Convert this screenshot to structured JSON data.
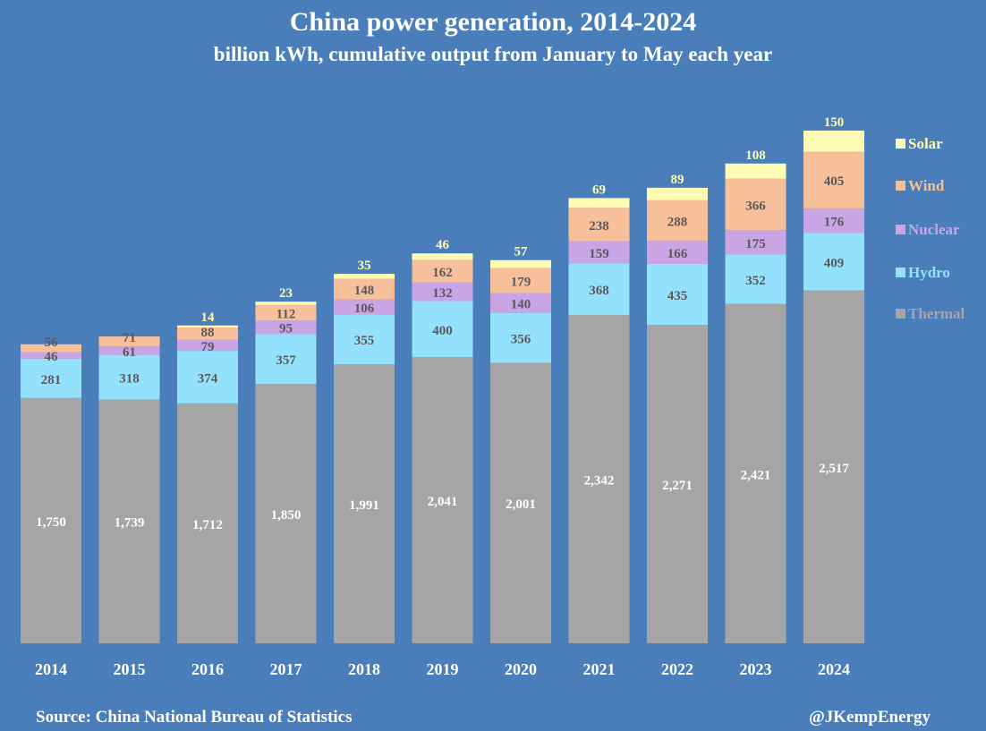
{
  "header": {
    "title": "China power generation, 2014-2024",
    "subtitle": "billion kWh, cumulative output from January to May each year"
  },
  "footer": {
    "source": "Source: China National Bureau of Statistics",
    "handle": "@JKempEnergy"
  },
  "chart_data": {
    "type": "bar",
    "stacked": true,
    "categories": [
      "2014",
      "2015",
      "2016",
      "2017",
      "2018",
      "2019",
      "2020",
      "2021",
      "2022",
      "2023",
      "2024"
    ],
    "series": [
      {
        "name": "Thermal",
        "color": "#a5a5a5",
        "label_color": "#ffffff",
        "values": [
          1750,
          1739,
          1712,
          1850,
          1991,
          2041,
          2001,
          2342,
          2271,
          2421,
          2517
        ]
      },
      {
        "name": "Hydro",
        "color": "#93e1fd",
        "label_color": "#595959",
        "values": [
          281,
          318,
          374,
          357,
          355,
          400,
          356,
          368,
          435,
          352,
          409
        ]
      },
      {
        "name": "Nuclear",
        "color": "#c9a5e6",
        "label_color": "#595959",
        "values": [
          46,
          61,
          79,
          95,
          106,
          132,
          140,
          159,
          166,
          175,
          176
        ]
      },
      {
        "name": "Wind",
        "color": "#f7c09a",
        "label_color": "#595959",
        "values": [
          56,
          71,
          88,
          112,
          148,
          162,
          179,
          238,
          288,
          366,
          405
        ]
      },
      {
        "name": "Solar",
        "color": "#fefcb2",
        "label_color": "#fefcb2",
        "values": [
          null,
          null,
          14,
          23,
          35,
          46,
          57,
          69,
          89,
          108,
          150
        ]
      }
    ],
    "legend": "right",
    "grid": false,
    "ylim": [
      0,
      3700
    ]
  }
}
